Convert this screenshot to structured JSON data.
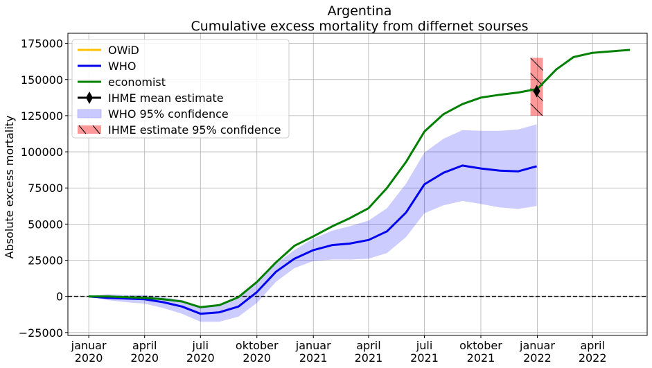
{
  "chart_data": {
    "type": "line",
    "title": "Argentina",
    "subtitle": "Cumulative excess mortality from differnet sourses",
    "ylabel": "Absolute excess mortality",
    "xlabel": "",
    "ylim": [
      -27000,
      182000
    ],
    "xlim": [
      "2019-11-28",
      "2022-06-29"
    ],
    "grid": true,
    "legend_position": "top-left",
    "y_ticks": [
      -25000,
      0,
      25000,
      50000,
      75000,
      100000,
      125000,
      150000,
      175000
    ],
    "y_tick_labels": [
      "−25000",
      "0",
      "25000",
      "50000",
      "75000",
      "100000",
      "125000",
      "150000",
      "175000"
    ],
    "x_ticks": [
      {
        "date": "2020-01-01",
        "line1": "januar",
        "line2": "2020"
      },
      {
        "date": "2020-04-01",
        "line1": "april",
        "line2": "2020"
      },
      {
        "date": "2020-07-01",
        "line1": "juli",
        "line2": "2020"
      },
      {
        "date": "2020-10-01",
        "line1": "oktober",
        "line2": "2020"
      },
      {
        "date": "2021-01-01",
        "line1": "januar",
        "line2": "2021"
      },
      {
        "date": "2021-04-01",
        "line1": "april",
        "line2": "2021"
      },
      {
        "date": "2021-07-01",
        "line1": "juli",
        "line2": "2021"
      },
      {
        "date": "2021-10-01",
        "line1": "oktober",
        "line2": "2021"
      },
      {
        "date": "2022-01-01",
        "line1": "januar",
        "line2": "2022"
      },
      {
        "date": "2022-04-01",
        "line1": "april",
        "line2": "2022"
      }
    ],
    "zero_line": {
      "y": 0,
      "style": "dashed",
      "color": "#000000"
    },
    "series": [
      {
        "name": "OWiD",
        "color": "#ffc000",
        "points": []
      },
      {
        "name": "WHO",
        "color": "#0000ee",
        "points": [
          [
            "2020-01-01",
            0
          ],
          [
            "2020-01-31",
            -1000
          ],
          [
            "2020-03-01",
            -1500
          ],
          [
            "2020-04-01",
            -2000
          ],
          [
            "2020-05-01",
            -4000
          ],
          [
            "2020-06-01",
            -7000
          ],
          [
            "2020-07-01",
            -12000
          ],
          [
            "2020-08-01",
            -11000
          ],
          [
            "2020-09-01",
            -7000
          ],
          [
            "2020-10-01",
            3000
          ],
          [
            "2020-11-01",
            17000
          ],
          [
            "2020-12-01",
            26000
          ],
          [
            "2021-01-01",
            32000
          ],
          [
            "2021-02-01",
            35500
          ],
          [
            "2021-03-01",
            36500
          ],
          [
            "2021-04-01",
            39000
          ],
          [
            "2021-05-01",
            45000
          ],
          [
            "2021-06-01",
            58000
          ],
          [
            "2021-07-01",
            77500
          ],
          [
            "2021-08-01",
            85500
          ],
          [
            "2021-09-01",
            90500
          ],
          [
            "2021-10-01",
            88500
          ],
          [
            "2021-11-01",
            87000
          ],
          [
            "2021-12-01",
            86500
          ],
          [
            "2021-12-31",
            90000
          ]
        ]
      },
      {
        "name": "economist",
        "color": "#008000",
        "points": [
          [
            "2020-01-01",
            0
          ],
          [
            "2020-02-01",
            0
          ],
          [
            "2020-03-01",
            -500
          ],
          [
            "2020-04-01",
            -1000
          ],
          [
            "2020-05-01",
            -2000
          ],
          [
            "2020-06-01",
            -3500
          ],
          [
            "2020-07-01",
            -7500
          ],
          [
            "2020-08-01",
            -6000
          ],
          [
            "2020-09-01",
            -500
          ],
          [
            "2020-10-01",
            10000
          ],
          [
            "2020-11-01",
            23500
          ],
          [
            "2020-12-01",
            35000
          ],
          [
            "2021-01-01",
            41500
          ],
          [
            "2021-02-01",
            48500
          ],
          [
            "2021-03-01",
            54000
          ],
          [
            "2021-04-01",
            61000
          ],
          [
            "2021-05-01",
            75000
          ],
          [
            "2021-06-01",
            93000
          ],
          [
            "2021-07-01",
            114000
          ],
          [
            "2021-08-01",
            126000
          ],
          [
            "2021-09-01",
            133000
          ],
          [
            "2021-10-01",
            137500
          ],
          [
            "2021-11-01",
            139500
          ],
          [
            "2021-12-01",
            141000
          ],
          [
            "2022-01-01",
            143500
          ],
          [
            "2022-02-01",
            157000
          ],
          [
            "2022-03-01",
            165500
          ],
          [
            "2022-04-01",
            168500
          ],
          [
            "2022-05-01",
            169500
          ],
          [
            "2022-06-01",
            170500
          ]
        ]
      }
    ],
    "who_confidence": {
      "name": "WHO 95% confidence",
      "color": "#0000ff",
      "opacity": 0.2,
      "upper": [
        [
          "2020-01-01",
          0
        ],
        [
          "2020-01-31",
          1500
        ],
        [
          "2020-03-01",
          1000
        ],
        [
          "2020-04-01",
          1000
        ],
        [
          "2020-05-01",
          -500
        ],
        [
          "2020-06-01",
          -2500
        ],
        [
          "2020-07-01",
          -7500
        ],
        [
          "2020-08-01",
          -6000
        ],
        [
          "2020-09-01",
          -1000
        ],
        [
          "2020-10-01",
          11000
        ],
        [
          "2020-11-01",
          22500
        ],
        [
          "2020-12-01",
          32000
        ],
        [
          "2021-01-01",
          40000
        ],
        [
          "2021-02-01",
          45500
        ],
        [
          "2021-03-01",
          48500
        ],
        [
          "2021-04-01",
          52500
        ],
        [
          "2021-05-01",
          61000
        ],
        [
          "2021-06-01",
          78000
        ],
        [
          "2021-07-01",
          99500
        ],
        [
          "2021-08-01",
          109000
        ],
        [
          "2021-09-01",
          115000
        ],
        [
          "2021-10-01",
          114500
        ],
        [
          "2021-11-01",
          114500
        ],
        [
          "2021-12-01",
          115500
        ],
        [
          "2021-12-31",
          119000
        ]
      ],
      "lower": [
        [
          "2020-01-01",
          0
        ],
        [
          "2020-01-31",
          -2500
        ],
        [
          "2020-03-01",
          -4000
        ],
        [
          "2020-04-01",
          -5000
        ],
        [
          "2020-05-01",
          -8000
        ],
        [
          "2020-06-01",
          -12000
        ],
        [
          "2020-07-01",
          -17500
        ],
        [
          "2020-08-01",
          -17500
        ],
        [
          "2020-09-01",
          -14000
        ],
        [
          "2020-10-01",
          -4500
        ],
        [
          "2020-11-01",
          10000
        ],
        [
          "2020-12-01",
          19500
        ],
        [
          "2021-01-01",
          24500
        ],
        [
          "2021-02-01",
          25500
        ],
        [
          "2021-03-01",
          25500
        ],
        [
          "2021-04-01",
          26000
        ],
        [
          "2021-05-01",
          30000
        ],
        [
          "2021-06-01",
          41000
        ],
        [
          "2021-07-01",
          57500
        ],
        [
          "2021-08-01",
          63000
        ],
        [
          "2021-09-01",
          66000
        ],
        [
          "2021-10-01",
          64000
        ],
        [
          "2021-11-01",
          61500
        ],
        [
          "2021-12-01",
          60500
        ],
        [
          "2021-12-31",
          62500
        ]
      ]
    },
    "ihme": {
      "mean_label": "IHME mean estimate",
      "interval_label": " IHME estimate 95% confidence",
      "date": "2021-12-31",
      "mean": 142000,
      "lower": 125000,
      "upper": 165000,
      "interval_color": "#ff0000",
      "interval_opacity": 0.4
    },
    "legend": [
      {
        "key": "owid",
        "label": "OWiD",
        "kind": "line",
        "color": "#ffc000"
      },
      {
        "key": "who",
        "label": "WHO",
        "kind": "line",
        "color": "#0000ee"
      },
      {
        "key": "economist",
        "label": "economist",
        "kind": "line",
        "color": "#008000"
      },
      {
        "key": "ihme-mean",
        "label": "IHME mean estimate",
        "kind": "marker",
        "color": "#000000"
      },
      {
        "key": "who-ci",
        "label": "WHO 95% confidence",
        "kind": "patch",
        "color": "#c9c9ff"
      },
      {
        "key": "ihme-ci",
        "label": " IHME estimate 95% confidence",
        "kind": "hatch",
        "color": "#ff9999"
      }
    ]
  }
}
